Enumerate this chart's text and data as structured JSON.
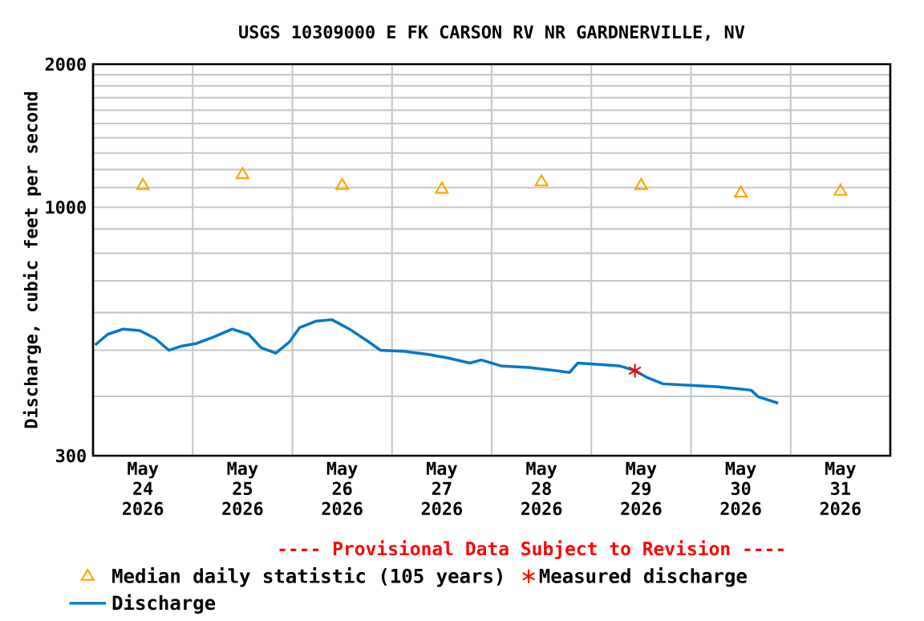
{
  "chart_data": {
    "type": "line",
    "title": "USGS 10309000 E FK CARSON RV NR GARDNERVILLE, NV",
    "ylabel": "Discharge, cubic feet per second",
    "annotations": [
      "---- Provisional Data Subject to Revision ----"
    ],
    "log": "y",
    "grid": true,
    "legend": "bottom",
    "xlim": [
      "2026-05-24T00:00",
      "2026-06-01T00:00"
    ],
    "xticks": [
      {
        "value": "2026-05-25T00:00",
        "label": null
      },
      {
        "value": "2026-05-26T00:00",
        "label": null
      },
      {
        "value": "2026-05-27T00:00",
        "label": null
      },
      {
        "value": "2026-05-28T00:00",
        "label": null
      },
      {
        "value": "2026-05-29T00:00",
        "label": null
      },
      {
        "value": "2026-05-30T00:00",
        "label": null
      },
      {
        "value": "2026-05-31T00:00",
        "label": null
      },
      {
        "value": "2026-05-24T12:00",
        "label": "May 24 2026"
      },
      {
        "value": "2026-05-25T12:00",
        "label": "May 25 2026"
      },
      {
        "value": "2026-05-26T12:00",
        "label": "May 26 2026"
      },
      {
        "value": "2026-05-27T12:00",
        "label": "May 27 2026"
      },
      {
        "value": "2026-05-28T12:00",
        "label": "May 28 2026"
      },
      {
        "value": "2026-05-29T12:00",
        "label": "May 29 2026"
      },
      {
        "value": "2026-05-30T12:00",
        "label": "May 30 2026"
      },
      {
        "value": "2026-05-31T12:00",
        "label": "May 31 2026"
      }
    ],
    "ylim": [
      300,
      2000
    ],
    "yticks": [
      300,
      {
        "value": 400,
        "label": null
      },
      {
        "value": 500,
        "label": null
      },
      {
        "value": 600,
        "label": null
      },
      {
        "value": 700,
        "label": null
      },
      {
        "value": 800,
        "label": null
      },
      {
        "value": 900,
        "label": null
      },
      1000,
      {
        "value": 1100,
        "label": null
      },
      {
        "value": 1200,
        "label": null
      },
      {
        "value": 1300,
        "label": null
      },
      {
        "value": 1400,
        "label": null
      },
      {
        "value": 1500,
        "label": null
      },
      {
        "value": 1600,
        "label": null
      },
      {
        "value": 1700,
        "label": null
      },
      {
        "value": 1800,
        "label": null
      },
      {
        "value": 1900,
        "label": null
      },
      2000
    ],
    "series": [
      {
        "name": "Median daily statistic (105 years)",
        "type": "scatter",
        "marker": "triangle",
        "color": "#ffa500",
        "x": [
          "2026-05-24T12:00",
          "2026-05-25T12:00",
          "2026-05-26T12:00",
          "2026-05-27T12:00",
          "2026-05-28T12:00",
          "2026-05-29T12:00",
          "2026-05-30T12:00",
          "2026-05-31T12:00"
        ],
        "values": [
          1110,
          1170,
          1110,
          1090,
          1130,
          1110,
          1070,
          1080
        ]
      },
      {
        "name": "Measured discharge",
        "type": "scatter",
        "marker": "cross",
        "color": "#ff0000",
        "x": [
          "2026-05-29T10:30"
        ],
        "values": [
          453
        ]
      },
      {
        "name": "Discharge",
        "marker": "none",
        "color": "#0077cc",
        "x": [
          "2026-05-24T00:30",
          "2026-05-24T03:30",
          "2026-05-24T07:15",
          "2026-05-24T11:15",
          "2026-05-24T15:00",
          "2026-05-24T18:15",
          "2026-05-24T21:15",
          "2026-05-25T01:00",
          "2026-05-25T05:00",
          "2026-05-25T09:30",
          "2026-05-25T13:30",
          "2026-05-25T16:30",
          "2026-05-25T20:00",
          "2026-05-25T23:15",
          "2026-05-26T01:45",
          "2026-05-26T05:45",
          "2026-05-26T09:30",
          "2026-05-26T13:45",
          "2026-05-26T18:30",
          "2026-05-26T21:15",
          "2026-05-27T03:15",
          "2026-05-27T08:45",
          "2026-05-27T13:45",
          "2026-05-27T18:45",
          "2026-05-27T21:30",
          "2026-05-28T02:30",
          "2026-05-28T09:00",
          "2026-05-28T15:30",
          "2026-05-28T18:45",
          "2026-05-28T20:45",
          "2026-05-29T03:15",
          "2026-05-29T07:00",
          "2026-05-29T10:30",
          "2026-05-29T13:15",
          "2026-05-29T17:15",
          "2026-05-29T23:45",
          "2026-05-30T06:15",
          "2026-05-30T11:15",
          "2026-05-30T14:30",
          "2026-05-30T16:15",
          "2026-05-30T21:00"
        ],
        "values": [
          513,
          540,
          554,
          550,
          529,
          500,
          510,
          517,
          533,
          554,
          540,
          506,
          493,
          520,
          558,
          576,
          580,
          554,
          520,
          500,
          497,
          490,
          481,
          470,
          477,
          463,
          460,
          453,
          449,
          470,
          466,
          463,
          453,
          439,
          425,
          422,
          419,
          415,
          412,
          399,
          387
        ]
      }
    ]
  }
}
